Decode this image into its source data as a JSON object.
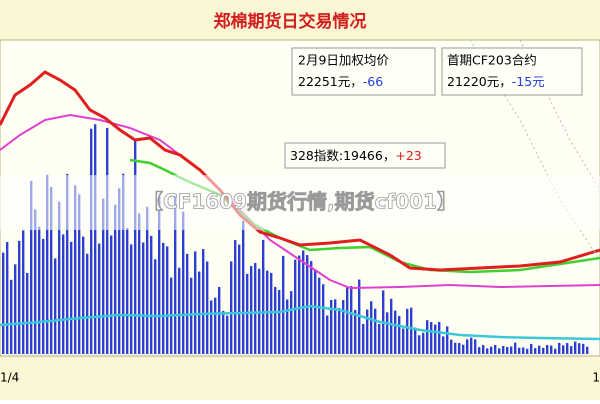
{
  "header": {
    "title": "郑棉期货日交易情况"
  },
  "boxes": [
    {
      "label": "2月9日加权均价",
      "price": "22251元，",
      "change": "-66"
    },
    {
      "label": "首期CF203合约",
      "price": "21220元，",
      "change": "-15元"
    }
  ],
  "index_box": {
    "label": "328指数:19466，",
    "change": "+23"
  },
  "banner": {
    "text": "【CF1609期货行情,期货cf001】"
  },
  "x_axis": {
    "labels": [
      "1/4",
      "1"
    ]
  }
}
